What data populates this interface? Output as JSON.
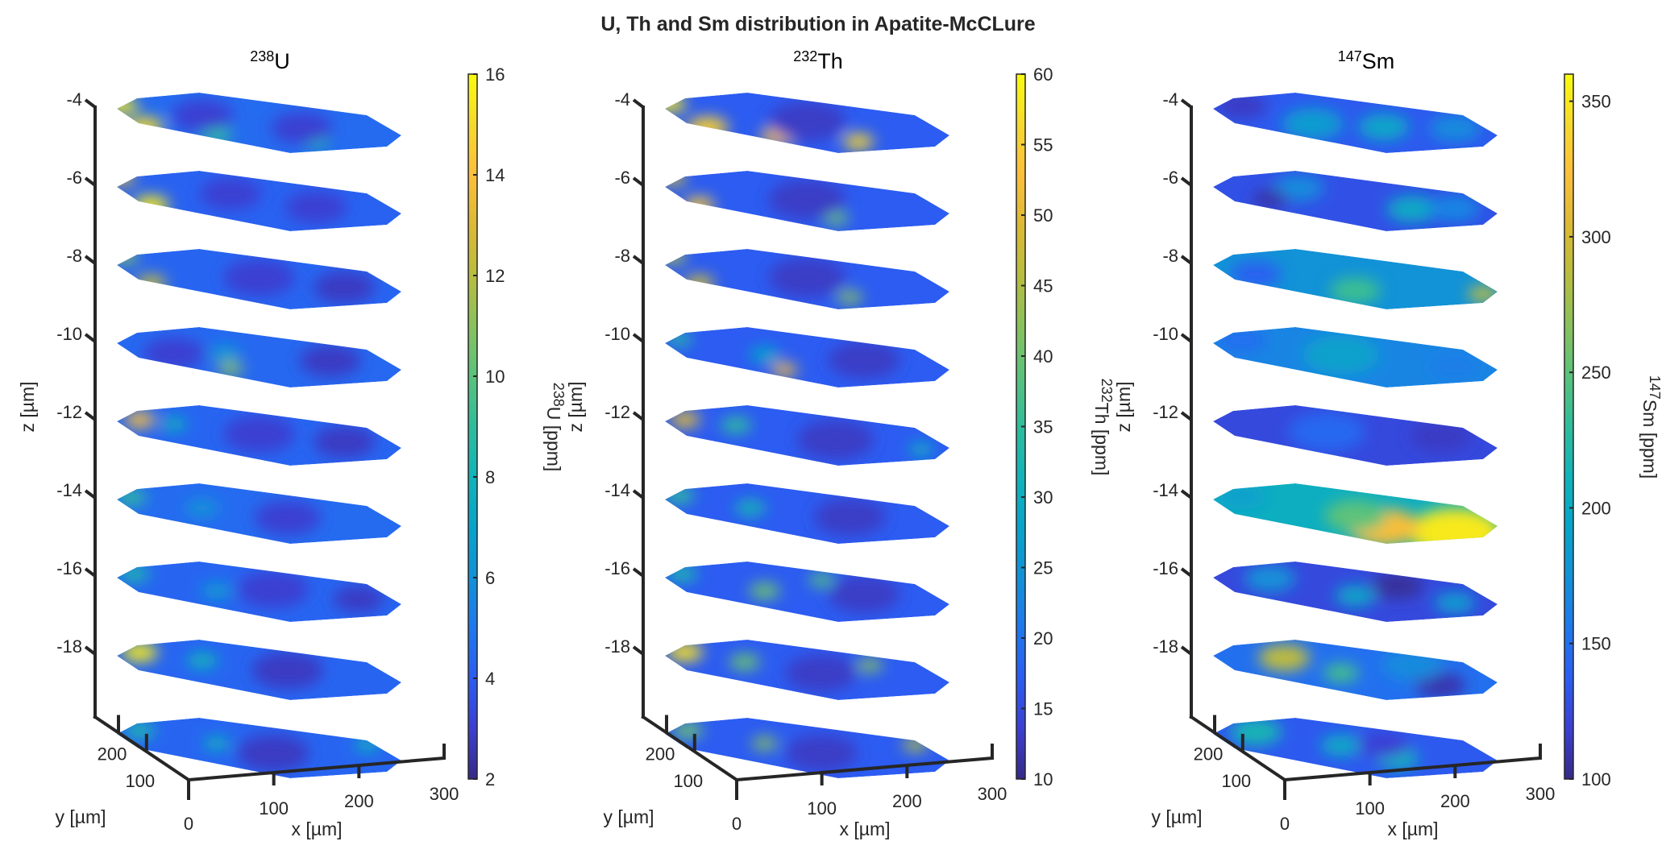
{
  "chart_data": {
    "type": "heatmap",
    "title": "U, Th and Sm distribution in Apatite-McCLure",
    "panels": [
      {
        "id": "u238",
        "title_sup": "238",
        "title_base": "U",
        "zlabel": "z [µm]",
        "xlabel": "x [µm]",
        "ylabel": "y [µm]",
        "z_ticks": [
          "-4",
          "-6",
          "-8",
          "-10",
          "-12",
          "-14",
          "-16",
          "-18"
        ],
        "z_values": [
          -4,
          -6,
          -8,
          -10,
          -12,
          -14,
          -16,
          -18
        ],
        "x_ticks": [
          "0",
          "100",
          "200",
          "300"
        ],
        "y_ticks": [
          "200",
          "100"
        ],
        "colorbar": {
          "label_sup": "238",
          "label_base": "U [ppm]",
          "range": [
            2,
            16
          ],
          "ticks": [
            "2",
            "4",
            "6",
            "8",
            "10",
            "12",
            "14",
            "16"
          ],
          "tick_values": [
            2,
            4,
            6,
            8,
            10,
            12,
            14,
            16
          ]
        },
        "slices": [
          {
            "z": -4,
            "base": 4.5,
            "spots": [
              [
                0.02,
                0.35,
                15.5,
                0.06
              ],
              [
                0.1,
                0.85,
                15,
                0.07
              ],
              [
                0.35,
                0.95,
                9,
                0.06
              ],
              [
                0.7,
                0.95,
                8.5,
                0.05
              ],
              [
                0.3,
                0.45,
                3,
                0.12
              ],
              [
                0.65,
                0.6,
                3,
                0.12
              ]
            ]
          },
          {
            "z": -6,
            "base": 4.2,
            "spots": [
              [
                0.02,
                0.2,
                13,
                0.05
              ],
              [
                0.12,
                0.85,
                15.5,
                0.07
              ],
              [
                0.4,
                0.4,
                3,
                0.12
              ],
              [
                0.7,
                0.6,
                3,
                0.12
              ]
            ]
          },
          {
            "z": -8,
            "base": 4.3,
            "spots": [
              [
                0.03,
                0.2,
                11,
                0.05
              ],
              [
                0.12,
                0.85,
                12.5,
                0.06
              ],
              [
                0.5,
                0.5,
                3,
                0.14
              ],
              [
                0.8,
                0.6,
                2.8,
                0.12
              ]
            ]
          },
          {
            "z": -10,
            "base": 4.4,
            "spots": [
              [
                0.38,
                0.5,
                6.5,
                0.06
              ],
              [
                0.4,
                0.9,
                11,
                0.05
              ],
              [
                0.2,
                0.6,
                3,
                0.12
              ],
              [
                0.75,
                0.5,
                2.8,
                0.12
              ]
            ]
          },
          {
            "z": -12,
            "base": 4.3,
            "spots": [
              [
                0.08,
                0.35,
                14,
                0.06
              ],
              [
                0.2,
                0.4,
                8,
                0.05
              ],
              [
                0.5,
                0.5,
                3,
                0.14
              ],
              [
                0.8,
                0.55,
                2.8,
                0.12
              ]
            ]
          },
          {
            "z": -14,
            "base": 4.5,
            "spots": [
              [
                0.05,
                0.35,
                9,
                0.06
              ],
              [
                0.3,
                0.5,
                6,
                0.07
              ],
              [
                0.6,
                0.6,
                3,
                0.13
              ]
            ]
          },
          {
            "z": -16,
            "base": 4.3,
            "spots": [
              [
                0.06,
                0.3,
                8.5,
                0.06
              ],
              [
                0.35,
                0.6,
                6.5,
                0.06
              ],
              [
                0.55,
                0.45,
                3,
                0.14
              ],
              [
                0.85,
                0.55,
                2.8,
                0.1
              ]
            ]
          },
          {
            "z": -18,
            "base": 4.3,
            "spots": [
              [
                0.08,
                0.3,
                15.5,
                0.07
              ],
              [
                0.3,
                0.4,
                8,
                0.06
              ],
              [
                0.6,
                0.5,
                2.8,
                0.14
              ]
            ]
          },
          {
            "z": -20,
            "base": 4.3,
            "spots": [
              [
                0.08,
                0.3,
                8.5,
                0.06
              ],
              [
                0.35,
                0.5,
                8,
                0.05
              ],
              [
                0.88,
                0.25,
                8,
                0.05
              ],
              [
                0.55,
                0.65,
                2.8,
                0.14
              ]
            ]
          }
        ]
      },
      {
        "id": "th232",
        "title_sup": "232",
        "title_base": "Th",
        "zlabel": "z [µm]",
        "xlabel": "x [µm]",
        "ylabel": "y [µm]",
        "z_ticks": [
          "-4",
          "-6",
          "-8",
          "-10",
          "-12",
          "-14",
          "-16",
          "-18"
        ],
        "z_values": [
          -4,
          -6,
          -8,
          -10,
          -12,
          -14,
          -16,
          -18
        ],
        "x_ticks": [
          "0",
          "100",
          "200",
          "300"
        ],
        "y_ticks": [
          "200",
          "100"
        ],
        "colorbar": {
          "label_sup": "232",
          "label_base": "Th [ppm]",
          "range": [
            10,
            60
          ],
          "ticks": [
            "10",
            "15",
            "20",
            "25",
            "30",
            "35",
            "40",
            "45",
            "50",
            "55",
            "60"
          ],
          "tick_values": [
            10,
            15,
            20,
            25,
            30,
            35,
            40,
            45,
            50,
            55,
            60
          ]
        },
        "slices": [
          {
            "z": -4,
            "base": 17,
            "spots": [
              [
                0.02,
                0.3,
                58,
                0.06
              ],
              [
                0.15,
                0.85,
                55,
                0.08
              ],
              [
                0.4,
                0.95,
                52,
                0.07
              ],
              [
                0.68,
                0.95,
                56,
                0.06
              ],
              [
                0.5,
                0.5,
                13,
                0.15
              ]
            ]
          },
          {
            "z": -6,
            "base": 17,
            "spots": [
              [
                0.03,
                0.2,
                48,
                0.05
              ],
              [
                0.12,
                0.85,
                54,
                0.06
              ],
              [
                0.6,
                0.95,
                40,
                0.05
              ],
              [
                0.5,
                0.5,
                13,
                0.15
              ]
            ]
          },
          {
            "z": -8,
            "base": 17,
            "spots": [
              [
                0.03,
                0.2,
                45,
                0.05
              ],
              [
                0.12,
                0.85,
                48,
                0.06
              ],
              [
                0.65,
                0.95,
                42,
                0.05
              ],
              [
                0.5,
                0.5,
                13,
                0.15
              ]
            ]
          },
          {
            "z": -10,
            "base": 17,
            "spots": [
              [
                0.05,
                0.3,
                34,
                0.05
              ],
              [
                0.35,
                0.55,
                28,
                0.06
              ],
              [
                0.42,
                0.92,
                52,
                0.05
              ],
              [
                0.7,
                0.5,
                13,
                0.14
              ]
            ]
          },
          {
            "z": -12,
            "base": 17,
            "spots": [
              [
                0.07,
                0.35,
                50,
                0.06
              ],
              [
                0.25,
                0.4,
                35,
                0.06
              ],
              [
                0.6,
                0.6,
                13,
                0.15
              ],
              [
                0.9,
                0.7,
                30,
                0.05
              ]
            ]
          },
          {
            "z": -14,
            "base": 17,
            "spots": [
              [
                0.05,
                0.3,
                35,
                0.06
              ],
              [
                0.3,
                0.5,
                32,
                0.06
              ],
              [
                0.65,
                0.55,
                13,
                0.14
              ]
            ]
          },
          {
            "z": -16,
            "base": 17,
            "spots": [
              [
                0.06,
                0.3,
                33,
                0.06
              ],
              [
                0.35,
                0.6,
                40,
                0.06
              ],
              [
                0.55,
                0.2,
                38,
                0.05
              ],
              [
                0.7,
                0.5,
                13,
                0.14
              ]
            ]
          },
          {
            "z": -18,
            "base": 17,
            "spots": [
              [
                0.07,
                0.3,
                57,
                0.07
              ],
              [
                0.28,
                0.45,
                40,
                0.06
              ],
              [
                0.72,
                0.3,
                42,
                0.05
              ],
              [
                0.55,
                0.6,
                13,
                0.14
              ]
            ]
          },
          {
            "z": -20,
            "base": 17,
            "spots": [
              [
                0.08,
                0.3,
                40,
                0.06
              ],
              [
                0.35,
                0.5,
                42,
                0.05
              ],
              [
                0.88,
                0.25,
                45,
                0.05
              ],
              [
                0.55,
                0.65,
                13,
                0.14
              ]
            ]
          }
        ]
      },
      {
        "id": "sm147",
        "title_sup": "147",
        "title_base": "Sm",
        "zlabel": "z [µm]",
        "xlabel": "x [µm]",
        "ylabel": "y [µm]",
        "z_ticks": [
          "-4",
          "-6",
          "-8",
          "-10",
          "-12",
          "-14",
          "-16",
          "-18"
        ],
        "z_values": [
          -4,
          -6,
          -8,
          -10,
          -12,
          -14,
          -16,
          -18
        ],
        "x_ticks": [
          "0",
          "100",
          "200",
          "300"
        ],
        "y_ticks": [
          "200",
          "100"
        ],
        "colorbar": {
          "label_sup": "147",
          "label_base": "Sm [ppm]",
          "range": [
            100,
            360
          ],
          "ticks": [
            "100",
            "150",
            "200",
            "250",
            "300",
            "350"
          ],
          "tick_values": [
            100,
            150,
            200,
            250,
            300,
            350
          ]
        },
        "slices": [
          {
            "z": -4,
            "base": 135,
            "spots": [
              [
                0.35,
                0.65,
                185,
                0.12
              ],
              [
                0.6,
                0.6,
                195,
                0.1
              ],
              [
                0.1,
                0.3,
                115,
                0.1
              ],
              [
                0.85,
                0.5,
                170,
                0.1
              ]
            ]
          },
          {
            "z": -6,
            "base": 130,
            "spots": [
              [
                0.3,
                0.3,
                170,
                0.1
              ],
              [
                0.7,
                0.65,
                200,
                0.1
              ],
              [
                0.2,
                0.65,
                108,
                0.07
              ],
              [
                0.85,
                0.55,
                165,
                0.1
              ]
            ]
          },
          {
            "z": -8,
            "base": 175,
            "spots": [
              [
                0.5,
                0.85,
                235,
                0.1
              ],
              [
                0.95,
                0.7,
                290,
                0.06
              ],
              [
                0.15,
                0.6,
                140,
                0.1
              ]
            ]
          },
          {
            "z": -10,
            "base": 165,
            "spots": [
              [
                0.45,
                0.5,
                190,
                0.15
              ],
              [
                0.1,
                0.3,
                150,
                0.1
              ],
              [
                0.85,
                0.6,
                160,
                0.1
              ]
            ]
          },
          {
            "z": -12,
            "base": 125,
            "spots": [
              [
                0.4,
                0.5,
                145,
                0.15
              ],
              [
                0.8,
                0.4,
                115,
                0.12
              ]
            ]
          },
          {
            "z": -14,
            "base": 205,
            "spots": [
              [
                0.85,
                0.85,
                350,
                0.18
              ],
              [
                0.6,
                0.85,
                320,
                0.14
              ],
              [
                0.5,
                0.6,
                250,
                0.12
              ],
              [
                0.1,
                0.3,
                190,
                0.1
              ]
            ]
          },
          {
            "z": -16,
            "base": 125,
            "spots": [
              [
                0.2,
                0.35,
                175,
                0.1
              ],
              [
                0.5,
                0.65,
                195,
                0.08
              ],
              [
                0.85,
                0.65,
                185,
                0.08
              ],
              [
                0.65,
                0.3,
                105,
                0.1
              ]
            ]
          },
          {
            "z": -18,
            "base": 150,
            "spots": [
              [
                0.25,
                0.35,
                290,
                0.1
              ],
              [
                0.45,
                0.65,
                240,
                0.07
              ],
              [
                0.8,
                0.8,
                110,
                0.1
              ],
              [
                0.7,
                0.3,
                170,
                0.12
              ]
            ]
          },
          {
            "z": -20,
            "base": 135,
            "spots": [
              [
                0.15,
                0.3,
                215,
                0.1
              ],
              [
                0.45,
                0.5,
                200,
                0.08
              ],
              [
                0.65,
                0.75,
                210,
                0.08
              ],
              [
                0.6,
                0.4,
                120,
                0.1
              ]
            ]
          }
        ]
      }
    ]
  },
  "colors": {
    "parula": [
      "#352a87",
      "#3b3fd2",
      "#2b5df2",
      "#1f78ee",
      "#1291d8",
      "#06a4ca",
      "#10b4ba",
      "#2ebd9c",
      "#59c27c",
      "#89c15c",
      "#b8bd3e",
      "#dcb934",
      "#fcbf3b",
      "#f6d92c",
      "#f9fb0e"
    ],
    "axis": "#262626"
  }
}
